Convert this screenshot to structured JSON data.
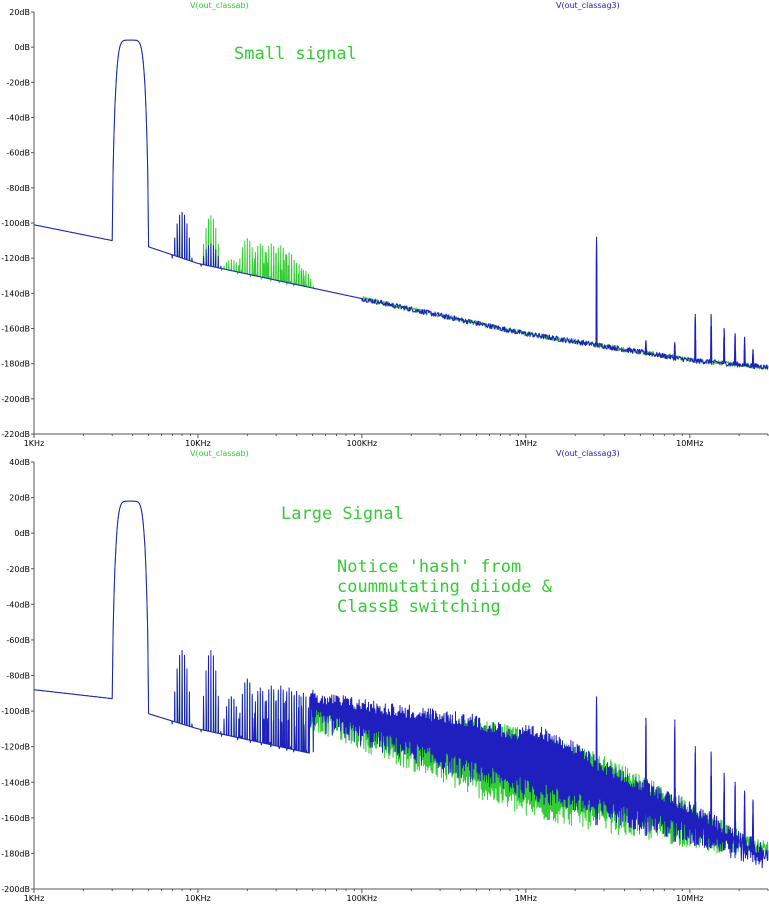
{
  "colors": {
    "green": "#33cc33",
    "blue": "#1f1fbf",
    "frame": "#555555"
  },
  "annotations": {
    "small": "Small signal",
    "large_title": "Large Signal",
    "large_note": "Notice 'hash' from\ncoummutating diiode &\nClassB switching"
  },
  "chart_data": [
    {
      "type": "line",
      "title": "",
      "x_scale": "log",
      "x_range_hz": [
        1000,
        30000000
      ],
      "x_ticks": [
        {
          "value": 1000,
          "label": "1KHz"
        },
        {
          "value": 10000,
          "label": "10KHz"
        },
        {
          "value": 100000,
          "label": "100KHz"
        },
        {
          "value": 1000000,
          "label": "1MHz"
        },
        {
          "value": 10000000,
          "label": "10MHz"
        }
      ],
      "y_range": [
        -220,
        20
      ],
      "y_ticks": [
        {
          "value": 20,
          "label": "20dB"
        },
        {
          "value": 0,
          "label": "0dB"
        },
        {
          "value": -20,
          "label": "-20dB"
        },
        {
          "value": -40,
          "label": "-40dB"
        },
        {
          "value": -60,
          "label": "-60dB"
        },
        {
          "value": -80,
          "label": "-80dB"
        },
        {
          "value": -100,
          "label": "-100dB"
        },
        {
          "value": -120,
          "label": "-120dB"
        },
        {
          "value": -140,
          "label": "-140dB"
        },
        {
          "value": -160,
          "label": "-160dB"
        },
        {
          "value": -180,
          "label": "-180dB"
        },
        {
          "value": -200,
          "label": "-200dB"
        },
        {
          "value": -220,
          "label": "-220dB"
        }
      ],
      "grid": false,
      "series": [
        {
          "name": "V(out_classab)",
          "color": "#33cc33",
          "baseline": [
            [
              1000,
              -101
            ],
            [
              3000,
              -110
            ],
            [
              4800,
              -113
            ],
            [
              10000,
              -123
            ],
            [
              100000,
              -143
            ],
            [
              1000000,
              -163
            ],
            [
              3000000,
              -170
            ],
            [
              10000000,
              -178
            ],
            [
              30000000,
              -182
            ]
          ],
          "fundamental": {
            "f": 4000,
            "peak": 6,
            "bandwidth_hz": [
              3000,
              5000
            ]
          },
          "spikes": [
            [
              8000,
              -94
            ],
            [
              12000,
              -96
            ],
            [
              16000,
              -121
            ],
            [
              20000,
              -109
            ],
            [
              24000,
              -112
            ],
            [
              28000,
              -112
            ],
            [
              32000,
              -113
            ],
            [
              36000,
              -117
            ],
            [
              40000,
              -123
            ],
            [
              44000,
              -127
            ]
          ],
          "hash": null
        },
        {
          "name": "V(out_classag3)",
          "color": "#1f1fbf",
          "baseline": [
            [
              1000,
              -101
            ],
            [
              3000,
              -110
            ],
            [
              4800,
              -113
            ],
            [
              10000,
              -123
            ],
            [
              100000,
              -143
            ],
            [
              1000000,
              -163
            ],
            [
              3000000,
              -170
            ],
            [
              10000000,
              -178
            ],
            [
              30000000,
              -182
            ]
          ],
          "fundamental": {
            "f": 4000,
            "peak": 6,
            "bandwidth_hz": [
              3000,
              5000
            ]
          },
          "spikes": [
            [
              8000,
              -94
            ],
            [
              12000,
              -112
            ],
            [
              2700000,
              -108
            ],
            [
              5400000,
              -167
            ],
            [
              8100000,
              -168
            ],
            [
              10800000,
              -152
            ],
            [
              13500000,
              -152
            ],
            [
              16200000,
              -160
            ],
            [
              18900000,
              -163
            ],
            [
              21600000,
              -165
            ],
            [
              24300000,
              -172
            ]
          ],
          "hash": null
        }
      ]
    },
    {
      "type": "line",
      "title": "",
      "x_scale": "log",
      "x_range_hz": [
        1000,
        30000000
      ],
      "x_ticks": [
        {
          "value": 1000,
          "label": "1KHz"
        },
        {
          "value": 10000,
          "label": "10KHz"
        },
        {
          "value": 100000,
          "label": "100KHz"
        },
        {
          "value": 1000000,
          "label": "1MHz"
        },
        {
          "value": 10000000,
          "label": "10MHz"
        }
      ],
      "y_range": [
        -200,
        40
      ],
      "y_ticks": [
        {
          "value": 40,
          "label": "40dB"
        },
        {
          "value": 20,
          "label": "20dB"
        },
        {
          "value": 0,
          "label": "0dB"
        },
        {
          "value": -20,
          "label": "-20dB"
        },
        {
          "value": -40,
          "label": "-40dB"
        },
        {
          "value": -60,
          "label": "-60dB"
        },
        {
          "value": -80,
          "label": "-80dB"
        },
        {
          "value": -100,
          "label": "-100dB"
        },
        {
          "value": -120,
          "label": "-120dB"
        },
        {
          "value": -140,
          "label": "-140dB"
        },
        {
          "value": -160,
          "label": "-160dB"
        },
        {
          "value": -180,
          "label": "-180dB"
        },
        {
          "value": -200,
          "label": "-200dB"
        }
      ],
      "grid": false,
      "series": [
        {
          "name": "V(out_classab)",
          "color": "#33cc33",
          "baseline": [
            [
              1000,
              -88
            ],
            [
              3000,
              -93
            ],
            [
              4800,
              -101
            ],
            [
              10000,
              -110
            ],
            [
              100000,
              -130
            ],
            [
              1000000,
              -153
            ],
            [
              3000000,
              -165
            ],
            [
              10000000,
              -175
            ],
            [
              30000000,
              -182
            ]
          ],
          "fundamental": {
            "f": 4000,
            "peak": 20,
            "bandwidth_hz": [
              3000,
              5000
            ]
          },
          "spikes": [
            [
              8000,
              -67
            ],
            [
              12000,
              -80
            ],
            [
              16000,
              -92
            ],
            [
              20000,
              -83
            ],
            [
              24000,
              -90
            ],
            [
              28000,
              -88
            ],
            [
              32000,
              -88
            ],
            [
              36000,
              -89
            ],
            [
              40000,
              -90
            ],
            [
              44000,
              -92
            ]
          ],
          "hash": {
            "f_range": [
              48000,
              30000000
            ],
            "envelope": [
              [
                48000,
                -92
              ],
              [
                150000,
                -100
              ],
              [
                500000,
                -104
              ],
              [
                1000000,
                -110
              ],
              [
                3000000,
                -125
              ],
              [
                10000000,
                -150
              ],
              [
                30000000,
                -176
              ]
            ],
            "low": [
              [
                48000,
                -110
              ],
              [
                1000000,
                -160
              ],
              [
                30000000,
                -185
              ]
            ]
          }
        },
        {
          "name": "V(out_classag3)",
          "color": "#1f1fbf",
          "baseline": [
            [
              1000,
              -88
            ],
            [
              3000,
              -93
            ],
            [
              4800,
              -101
            ],
            [
              10000,
              -110
            ],
            [
              100000,
              -130
            ],
            [
              1000000,
              -153
            ],
            [
              3000000,
              -165
            ],
            [
              10000000,
              -175
            ],
            [
              30000000,
              -182
            ]
          ],
          "fundamental": {
            "f": 4000,
            "peak": 20,
            "bandwidth_hz": [
              3000,
              5000
            ]
          },
          "spikes": [
            [
              8000,
              -66
            ],
            [
              12000,
              -66
            ],
            [
              16000,
              -92
            ],
            [
              20000,
              -82
            ],
            [
              24000,
              -87
            ],
            [
              28000,
              -86
            ],
            [
              32000,
              -86
            ],
            [
              36000,
              -87
            ],
            [
              40000,
              -89
            ],
            [
              44000,
              -90
            ],
            [
              2700000,
              -92
            ],
            [
              5400000,
              -104
            ],
            [
              8100000,
              -105
            ],
            [
              10800000,
              -120
            ],
            [
              13500000,
              -123
            ],
            [
              16200000,
              -135
            ],
            [
              18900000,
              -140
            ],
            [
              21600000,
              -145
            ],
            [
              24300000,
              -150
            ]
          ],
          "hash": {
            "f_range": [
              48000,
              30000000
            ],
            "envelope": [
              [
                48000,
                -88
              ],
              [
                150000,
                -95
              ],
              [
                500000,
                -102
              ],
              [
                900000,
                -110
              ],
              [
                1000000,
                -108
              ],
              [
                1500000,
                -110
              ],
              [
                3000000,
                -128
              ],
              [
                10000000,
                -150
              ],
              [
                30000000,
                -176
              ]
            ],
            "low": [
              [
                48000,
                -110
              ],
              [
                1000000,
                -150
              ],
              [
                10000000,
                -175
              ],
              [
                30000000,
                -190
              ]
            ]
          }
        }
      ]
    }
  ]
}
